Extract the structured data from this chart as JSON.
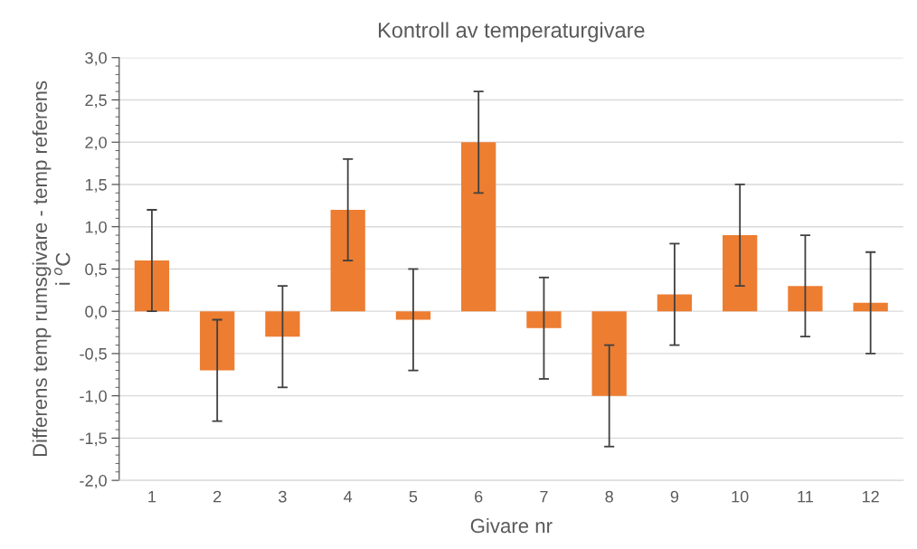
{
  "chart_data": {
    "type": "bar",
    "title": "Kontroll av temperaturgivare",
    "xlabel": "Givare nr",
    "ylabel": "Differens temp rumsgivare - temp referens\ni $^{o}$C",
    "categories": [
      "1",
      "2",
      "3",
      "4",
      "5",
      "6",
      "7",
      "8",
      "9",
      "10",
      "11",
      "12"
    ],
    "values": [
      0.6,
      -0.7,
      -0.3,
      1.2,
      -0.1,
      2.0,
      -0.2,
      -1.0,
      0.2,
      0.9,
      0.3,
      0.1
    ],
    "errors": [
      0.6,
      0.6,
      0.6,
      0.6,
      0.6,
      0.6,
      0.6,
      0.6,
      0.6,
      0.6,
      0.6,
      0.6
    ],
    "color": "#ed7d31",
    "ylim": [
      -2.0,
      3.0
    ],
    "yticks": [
      {
        "value": -2.0,
        "label": "-2,0"
      },
      {
        "value": -1.5,
        "label": "-1,5"
      },
      {
        "value": -1.0,
        "label": "-1,0"
      },
      {
        "value": -0.5,
        "label": "-0,5"
      },
      {
        "value": 0.0,
        "label": "0,0"
      },
      {
        "value": 0.5,
        "label": "0,5"
      },
      {
        "value": 1.0,
        "label": "1,0"
      },
      {
        "value": 1.5,
        "label": "1,5"
      },
      {
        "value": 2.0,
        "label": "2,0"
      },
      {
        "value": 2.5,
        "label": "2,5"
      },
      {
        "value": 3.0,
        "label": "3,0"
      }
    ],
    "grid": "y"
  }
}
